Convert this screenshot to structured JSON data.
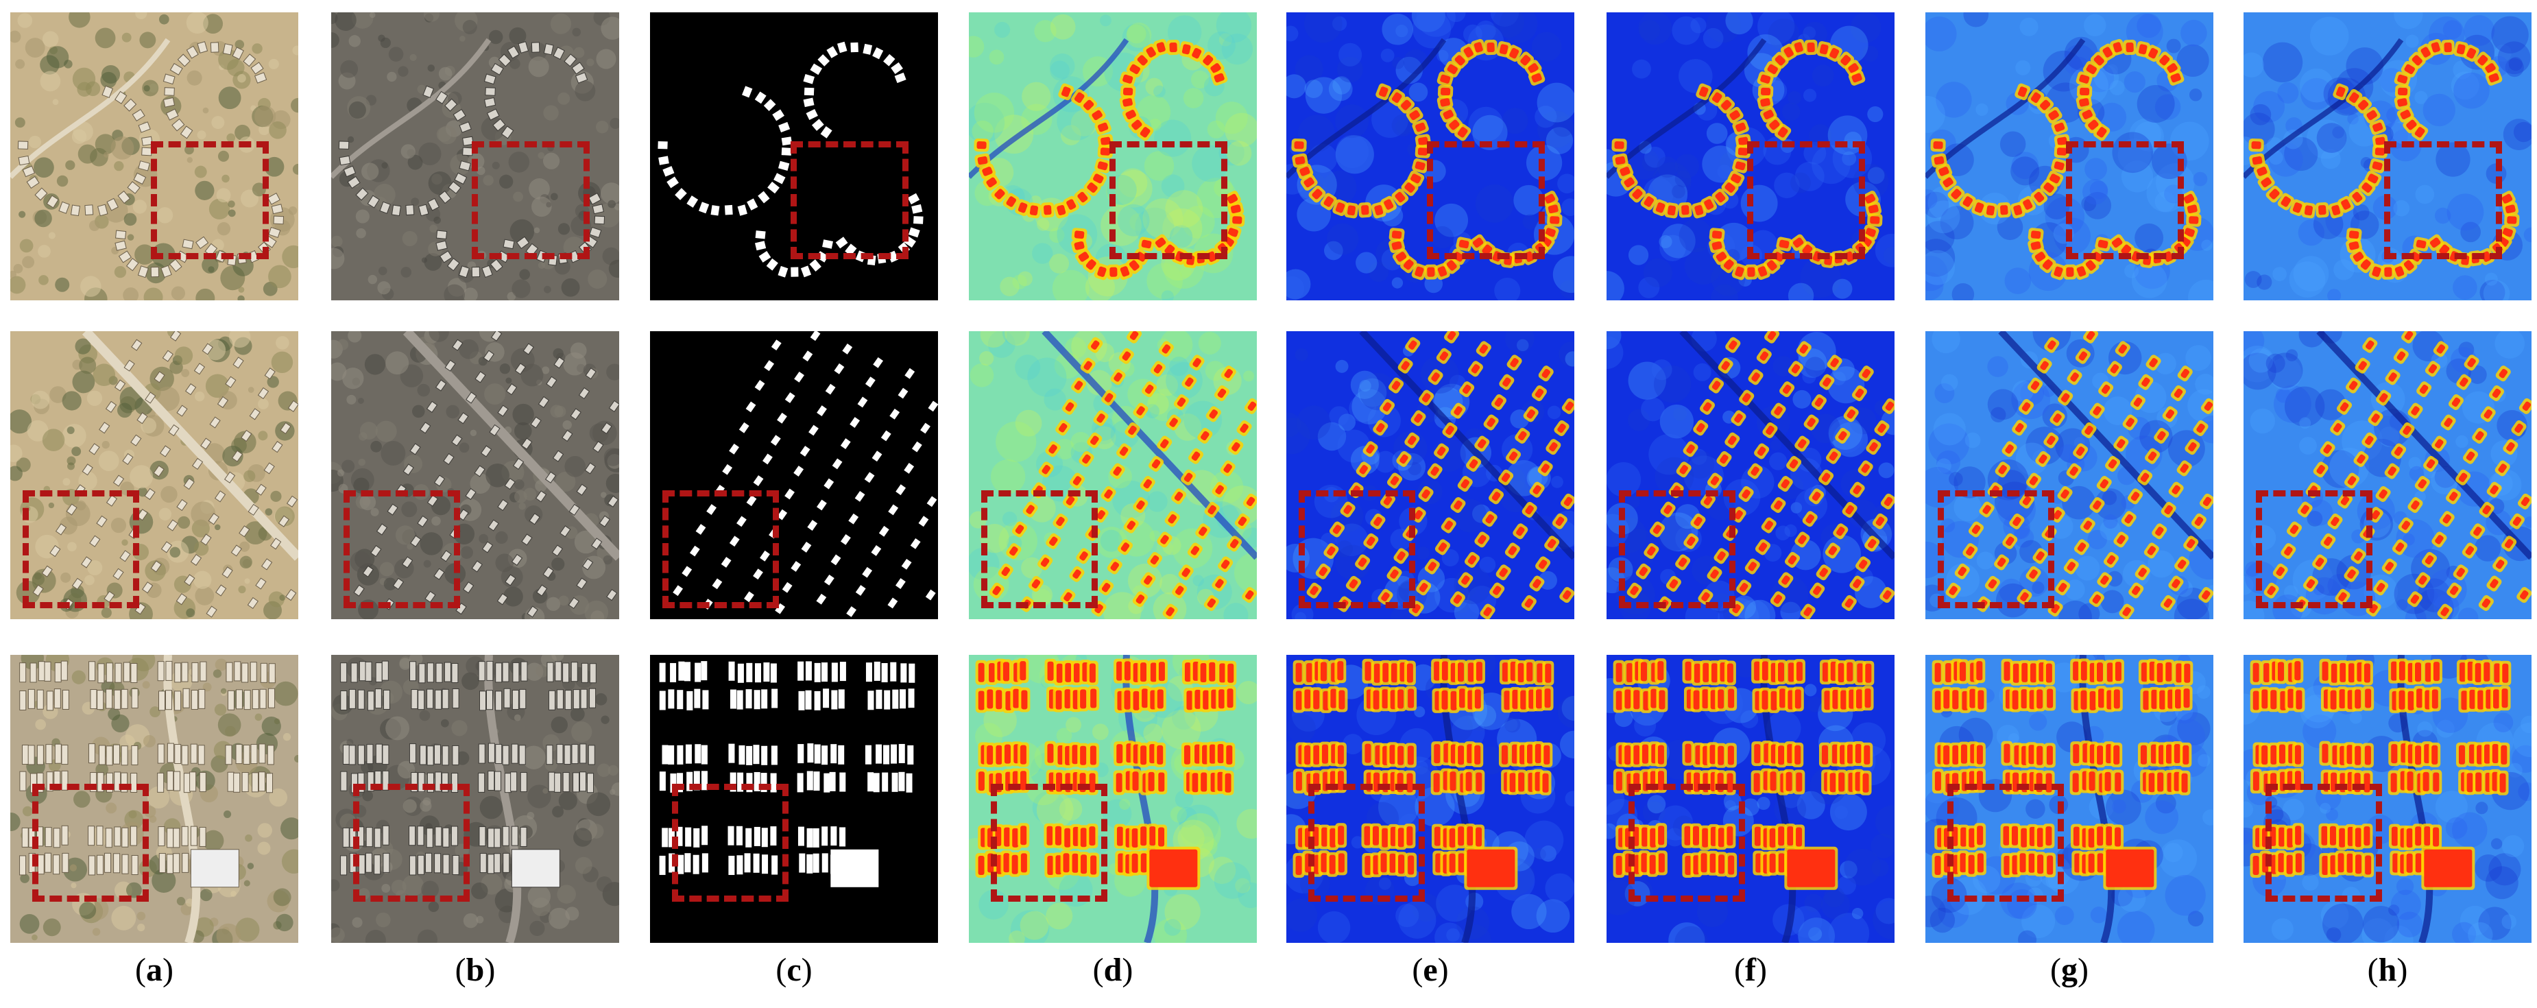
{
  "figure": {
    "columns": [
      {
        "id": "a",
        "label": "a",
        "kind": "rgb-aerial"
      },
      {
        "id": "b",
        "label": "b",
        "kind": "grey-aerial"
      },
      {
        "id": "c",
        "label": "c",
        "kind": "binary-mask"
      },
      {
        "id": "d",
        "label": "d",
        "kind": "heatmap-soft"
      },
      {
        "id": "e",
        "label": "e",
        "kind": "heatmap"
      },
      {
        "id": "f",
        "label": "f",
        "kind": "heatmap"
      },
      {
        "id": "g",
        "label": "g",
        "kind": "heatmap-light"
      },
      {
        "id": "h",
        "label": "h",
        "kind": "heatmap-light"
      }
    ],
    "rows": [
      {
        "id": "row1",
        "scene": "curved residential streets"
      },
      {
        "id": "row2",
        "scene": "diagonal grid residential blocks"
      },
      {
        "id": "row3",
        "scene": "dense blocks with large building"
      }
    ],
    "roi_color": "#b01515",
    "colors": {
      "heat_low": "#1030e0",
      "heat_mid": "#40c8ff",
      "heat_high": "#ff3010",
      "heat_peak": "#ffd000",
      "mask_bg": "#000000",
      "mask_fg": "#ffffff"
    }
  }
}
